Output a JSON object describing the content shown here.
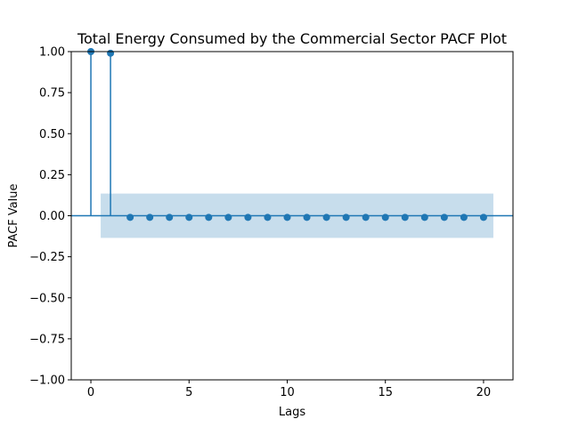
{
  "chart_data": {
    "type": "scatter",
    "subtype": "stem",
    "title": "Total Energy Consumed by the Commercial Sector PACF Plot",
    "xlabel": "Lags",
    "ylabel": "PACF Value",
    "xlim": [
      -1,
      21.5
    ],
    "ylim": [
      -1.0,
      1.0
    ],
    "x_ticks": [
      0,
      5,
      10,
      15,
      20
    ],
    "y_ticks": [
      -1.0,
      -0.75,
      -0.5,
      -0.25,
      0.0,
      0.25,
      0.5,
      0.75,
      1.0
    ],
    "x_tick_labels": [
      "0",
      "5",
      "10",
      "15",
      "20"
    ],
    "y_tick_labels": [
      "−1.00",
      "−0.75",
      "−0.50",
      "−0.25",
      "0.00",
      "0.25",
      "0.50",
      "0.75",
      "1.00"
    ],
    "lags": [
      0,
      1,
      2,
      3,
      4,
      5,
      6,
      7,
      8,
      9,
      10,
      11,
      12,
      13,
      14,
      15,
      16,
      17,
      18,
      19,
      20
    ],
    "values": [
      1.0,
      0.99,
      -0.01,
      -0.01,
      -0.01,
      -0.01,
      -0.01,
      -0.01,
      -0.01,
      -0.01,
      -0.01,
      -0.01,
      -0.01,
      -0.01,
      -0.01,
      -0.01,
      -0.01,
      -0.01,
      -0.01,
      -0.01,
      -0.01
    ],
    "confidence_band": {
      "lag_range": [
        0.5,
        20.5
      ],
      "lower": -0.135,
      "upper": 0.135
    },
    "grid": false,
    "colors": {
      "stem": "#1f77b4",
      "band": "#1f77b4",
      "axis": "#000000"
    }
  }
}
